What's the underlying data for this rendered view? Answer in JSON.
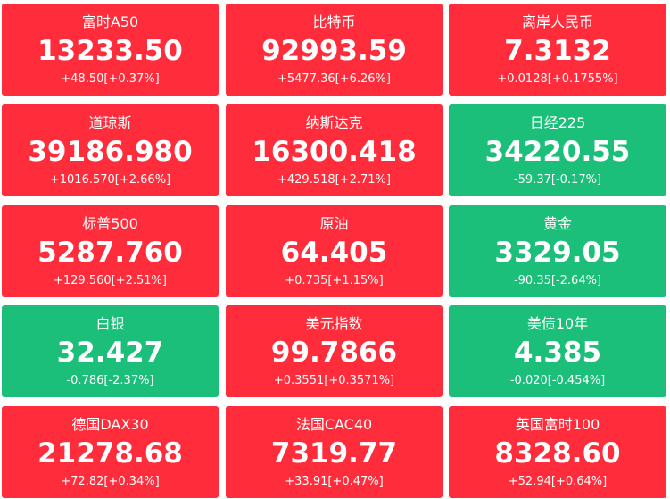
{
  "quotes": [
    {
      "name": "富时A50",
      "value": "13233.50",
      "change": "+48.50[+0.37%]",
      "direction": "up"
    },
    {
      "name": "比特币",
      "value": "92993.59",
      "change": "+5477.36[+6.26%]",
      "direction": "up"
    },
    {
      "name": "离岸人民币",
      "value": "7.3132",
      "change": "+0.0128[+0.1755%]",
      "direction": "up"
    },
    {
      "name": "道琼斯",
      "value": "39186.980",
      "change": "+1016.570[+2.66%]",
      "direction": "up"
    },
    {
      "name": "纳斯达克",
      "value": "16300.418",
      "change": "+429.518[+2.71%]",
      "direction": "up"
    },
    {
      "name": "日经225",
      "value": "34220.55",
      "change": "-59.37[-0.17%]",
      "direction": "down"
    },
    {
      "name": "标普500",
      "value": "5287.760",
      "change": "+129.560[+2.51%]",
      "direction": "up"
    },
    {
      "name": "原油",
      "value": "64.405",
      "change": "+0.735[+1.15%]",
      "direction": "up"
    },
    {
      "name": "黄金",
      "value": "3329.05",
      "change": "-90.35[-2.64%]",
      "direction": "down"
    },
    {
      "name": "白银",
      "value": "32.427",
      "change": "-0.786[-2.37%]",
      "direction": "down"
    },
    {
      "name": "美元指数",
      "value": "99.7866",
      "change": "+0.3551[+0.3571%]",
      "direction": "up"
    },
    {
      "name": "美债10年",
      "value": "4.385",
      "change": "-0.020[-0.454%]",
      "direction": "down"
    },
    {
      "name": "德国DAX30",
      "value": "21278.68",
      "change": "+72.82[+0.34%]",
      "direction": "up"
    },
    {
      "name": "法国CAC40",
      "value": "7319.77",
      "change": "+33.91[+0.47%]",
      "direction": "up"
    },
    {
      "name": "英国富时100",
      "value": "8328.60",
      "change": "+52.94[+0.64%]",
      "direction": "up"
    }
  ],
  "colors": {
    "up": "#ff2d3b",
    "down": "#1cbf79",
    "text": "#ffffff"
  }
}
